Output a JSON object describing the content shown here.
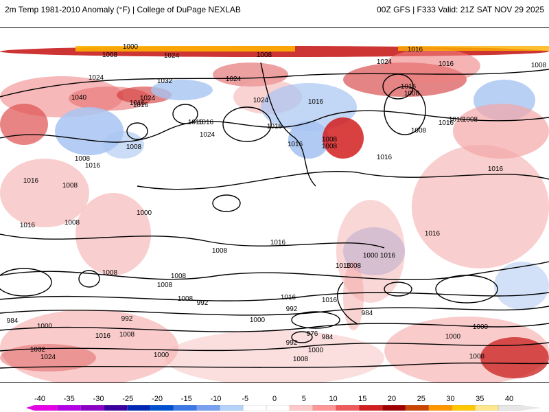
{
  "header": {
    "left_title": "2m Temp 1981-2010 Anomaly (°F) | College of DuPage NEXLAB",
    "right_title": "00Z GFS | F333 Valid: 21Z SAT NOV 29 2025"
  },
  "colorbar": {
    "labels": [
      "-40",
      "-35",
      "-30",
      "-25",
      "-20",
      "-15",
      "-10",
      "-5",
      "0",
      "5",
      "10",
      "15",
      "20",
      "25",
      "30",
      "35",
      "40"
    ],
    "colors": [
      "#e600e6",
      "#b400e6",
      "#8c00c8",
      "#3c00a0",
      "#0028b4",
      "#0050d2",
      "#3c78e6",
      "#78a0f0",
      "#b4d2fa",
      "#ffffff",
      "#ffffff",
      "#ffc8c8",
      "#ff9696",
      "#f05a5a",
      "#d21e1e",
      "#a00000",
      "#c84600",
      "#ff9600",
      "#ffc800",
      "#ffe68c",
      "#e6e6e6"
    ]
  },
  "map": {
    "background": "#ffffff",
    "warm_color": "#f4a6a6",
    "cold_color": "#a8c4f2",
    "isobar_labels": [
      "1000",
      "1008",
      "1008",
      "1016",
      "1024",
      "1032",
      "1024",
      "1016",
      "1040",
      "1024",
      "1016",
      "1024",
      "1016",
      "1008",
      "1008",
      "1016",
      "1016",
      "1024",
      "1024",
      "1016",
      "1008",
      "1008",
      "1016",
      "1016",
      "1024",
      "1016",
      "1008",
      "1016",
      "1008",
      "1016",
      "1016",
      "1008",
      "1008",
      "1016",
      "1016",
      "1016",
      "1016",
      "1008",
      "1008",
      "1000",
      "1008",
      "1016",
      "1008",
      "1008",
      "1016",
      "1016",
      "1016",
      "1008",
      "1000",
      "1016",
      "1016",
      "1008",
      "1008",
      "992",
      "984",
      "1000",
      "992",
      "984",
      "1000",
      "992",
      "1000",
      "976",
      "984",
      "992",
      "1008",
      "1000",
      "1016",
      "1032",
      "1024",
      "1008",
      "1000",
      "1008",
      "1000"
    ]
  }
}
